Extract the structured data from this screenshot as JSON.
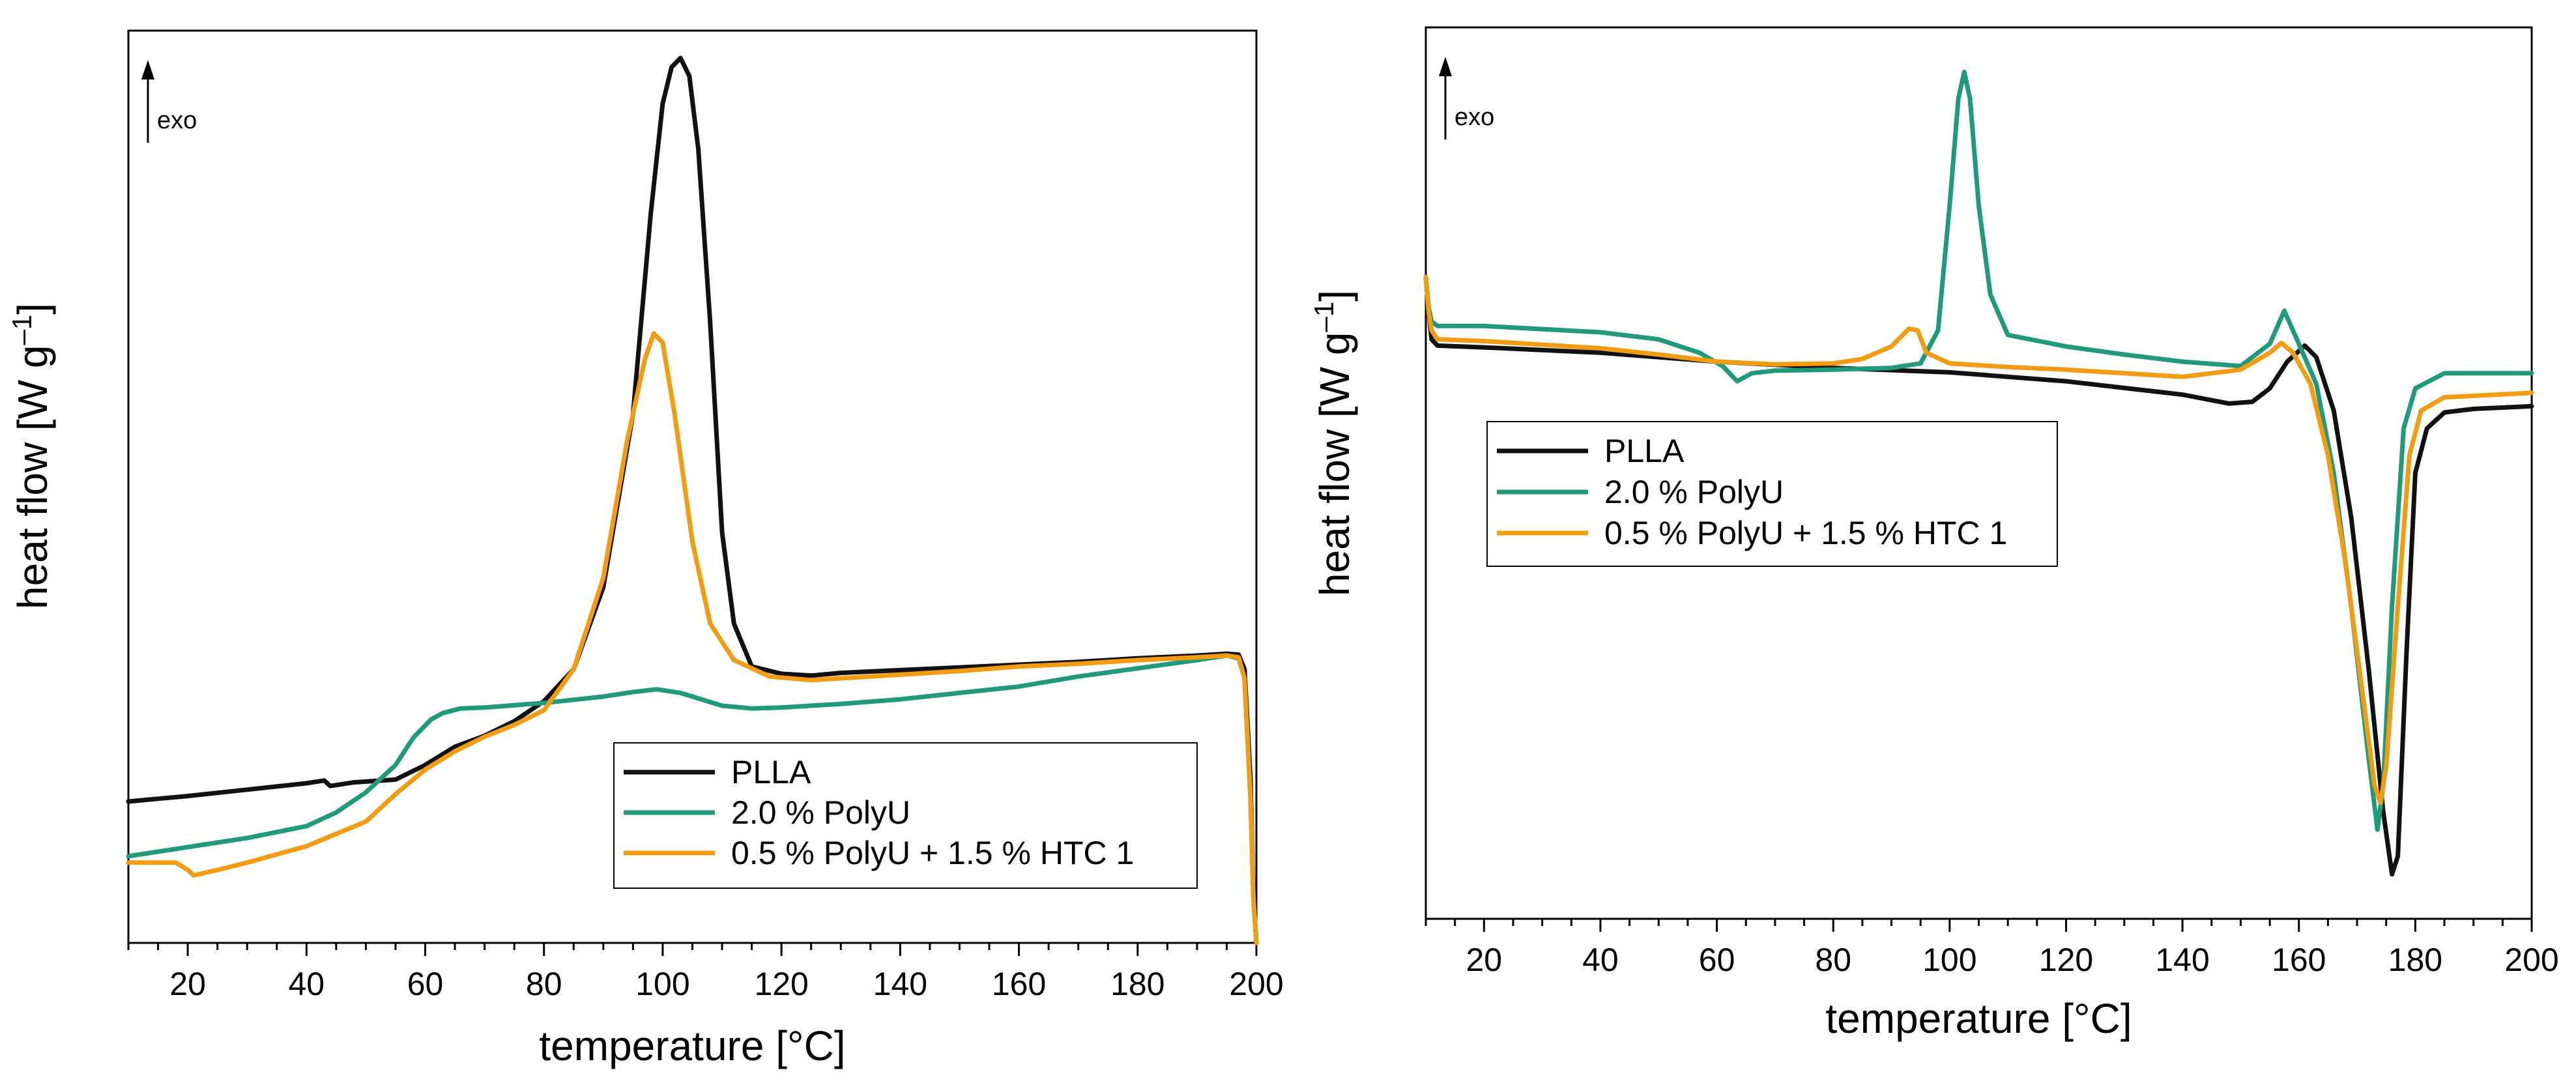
{
  "colors": {
    "PLLA": "#111111",
    "PolyU": "#1f9a7a",
    "HTC": "#f39c12"
  },
  "chart_data": [
    {
      "type": "line",
      "title": "",
      "xlabel": "temperature [°C]",
      "ylabel": "heat flow [W g",
      "ylabel_sup": "–1",
      "ylabel_close": "]",
      "exo_label": "exo",
      "xlim": [
        10,
        200
      ],
      "ylim": [
        0,
        100
      ],
      "xticks": [
        20,
        40,
        60,
        80,
        100,
        120,
        140,
        160,
        180,
        200
      ],
      "grid": false,
      "legend_position": "bottom-center",
      "series": [
        {
          "name": "PLLA",
          "color_key": "PLLA",
          "points": [
            [
              10,
              15.5
            ],
            [
              20,
              16.1
            ],
            [
              30,
              16.8
            ],
            [
              40,
              17.5
            ],
            [
              43,
              17.8
            ],
            [
              44,
              17.2
            ],
            [
              48,
              17.6
            ],
            [
              55,
              17.9
            ],
            [
              60,
              19.5
            ],
            [
              65,
              21.5
            ],
            [
              70,
              22.7
            ],
            [
              75,
              24.3
            ],
            [
              80,
              26.5
            ],
            [
              85,
              30
            ],
            [
              90,
              39
            ],
            [
              95,
              58
            ],
            [
              98,
              80
            ],
            [
              100,
              92
            ],
            [
              101.5,
              96
            ],
            [
              103,
              97
            ],
            [
              104.5,
              95
            ],
            [
              106,
              87
            ],
            [
              108,
              68
            ],
            [
              110,
              45
            ],
            [
              112,
              35
            ],
            [
              115,
              30.3
            ],
            [
              120,
              29.5
            ],
            [
              125,
              29.3
            ],
            [
              130,
              29.6
            ],
            [
              140,
              29.9
            ],
            [
              150,
              30.2
            ],
            [
              160,
              30.5
            ],
            [
              170,
              30.8
            ],
            [
              180,
              31.2
            ],
            [
              190,
              31.5
            ],
            [
              195,
              31.7
            ],
            [
              197,
              31.6
            ],
            [
              198,
              30
            ],
            [
              199,
              18
            ],
            [
              199.5,
              5
            ],
            [
              200,
              0
            ]
          ]
        },
        {
          "name": "2.0 % PolyU",
          "color_key": "PolyU",
          "points": [
            [
              10,
              9.5
            ],
            [
              20,
              10.5
            ],
            [
              30,
              11.5
            ],
            [
              40,
              12.8
            ],
            [
              45,
              14.3
            ],
            [
              50,
              16.5
            ],
            [
              55,
              19.5
            ],
            [
              58,
              22.5
            ],
            [
              61,
              24.5
            ],
            [
              63,
              25.2
            ],
            [
              66,
              25.7
            ],
            [
              70,
              25.8
            ],
            [
              80,
              26.3
            ],
            [
              90,
              27
            ],
            [
              95,
              27.5
            ],
            [
              99,
              27.8
            ],
            [
              103,
              27.4
            ],
            [
              107,
              26.6
            ],
            [
              110,
              26
            ],
            [
              115,
              25.7
            ],
            [
              120,
              25.8
            ],
            [
              130,
              26.2
            ],
            [
              140,
              26.7
            ],
            [
              150,
              27.4
            ],
            [
              160,
              28.1
            ],
            [
              170,
              29.2
            ],
            [
              180,
              30.1
            ],
            [
              190,
              31
            ],
            [
              195,
              31.5
            ],
            [
              197,
              31.2
            ],
            [
              198,
              29
            ],
            [
              199,
              16
            ],
            [
              199.5,
              5
            ],
            [
              200,
              0
            ]
          ]
        },
        {
          "name": "0.5 % PolyU + 1.5 % HTC 1",
          "color_key": "HTC",
          "points": [
            [
              10,
              8.8
            ],
            [
              18,
              8.8
            ],
            [
              20,
              8
            ],
            [
              21,
              7.4
            ],
            [
              25,
              8
            ],
            [
              30,
              8.8
            ],
            [
              40,
              10.6
            ],
            [
              50,
              13.3
            ],
            [
              55,
              16.3
            ],
            [
              60,
              19
            ],
            [
              65,
              21
            ],
            [
              70,
              22.6
            ],
            [
              75,
              23.9
            ],
            [
              80,
              25.5
            ],
            [
              85,
              30
            ],
            [
              90,
              40
            ],
            [
              94,
              55
            ],
            [
              97,
              64
            ],
            [
              98.5,
              66.8
            ],
            [
              100,
              65.8
            ],
            [
              102,
              58
            ],
            [
              105,
              44
            ],
            [
              108,
              35
            ],
            [
              112,
              31
            ],
            [
              118,
              29.2
            ],
            [
              125,
              28.8
            ],
            [
              130,
              29
            ],
            [
              140,
              29.4
            ],
            [
              150,
              29.8
            ],
            [
              160,
              30.3
            ],
            [
              170,
              30.6
            ],
            [
              180,
              31
            ],
            [
              190,
              31.3
            ],
            [
              195,
              31.5
            ],
            [
              197,
              31.3
            ],
            [
              198,
              29
            ],
            [
              199,
              16
            ],
            [
              199.5,
              5
            ],
            [
              200,
              0
            ]
          ]
        }
      ]
    },
    {
      "type": "line",
      "title": "",
      "xlabel": "temperature [°C]",
      "ylabel": "heat flow [W g",
      "ylabel_sup": "–1",
      "ylabel_close": "]",
      "exo_label": "exo",
      "xlim": [
        10,
        200
      ],
      "ylim": [
        0,
        100
      ],
      "xticks": [
        20,
        40,
        60,
        80,
        100,
        120,
        140,
        160,
        180,
        200
      ],
      "grid": false,
      "legend_position": "center-left",
      "series": [
        {
          "name": "PLLA",
          "color_key": "PLLA",
          "points": [
            [
              10,
              72
            ],
            [
              10.5,
              68
            ],
            [
              11,
              65
            ],
            [
              12,
              64.3
            ],
            [
              20,
              64.1
            ],
            [
              40,
              63.5
            ],
            [
              60,
              62.5
            ],
            [
              80,
              61.8
            ],
            [
              100,
              61.3
            ],
            [
              120,
              60.3
            ],
            [
              140,
              58.8
            ],
            [
              148,
              57.8
            ],
            [
              152,
              58
            ],
            [
              155,
              59.5
            ],
            [
              158,
              62.5
            ],
            [
              161,
              64.3
            ],
            [
              163,
              63
            ],
            [
              166,
              57
            ],
            [
              169,
              45
            ],
            [
              172,
              28
            ],
            [
              174.5,
              12
            ],
            [
              176,
              5
            ],
            [
              177,
              7
            ],
            [
              178.5,
              30
            ],
            [
              180,
              50
            ],
            [
              182,
              55
            ],
            [
              185,
              56.8
            ],
            [
              190,
              57.2
            ],
            [
              200,
              57.5
            ]
          ]
        },
        {
          "name": "2.0 % PolyU",
          "color_key": "PolyU",
          "points": [
            [
              10,
              72
            ],
            [
              10.5,
              68.5
            ],
            [
              11,
              67
            ],
            [
              12,
              66.5
            ],
            [
              20,
              66.5
            ],
            [
              40,
              65.8
            ],
            [
              50,
              65
            ],
            [
              57,
              63.5
            ],
            [
              61,
              62
            ],
            [
              63.5,
              60.3
            ],
            [
              66,
              61.2
            ],
            [
              70,
              61.5
            ],
            [
              80,
              61.6
            ],
            [
              90,
              61.8
            ],
            [
              95,
              62.3
            ],
            [
              98,
              66
            ],
            [
              100,
              80
            ],
            [
              101.5,
              92
            ],
            [
              102.5,
              95
            ],
            [
              103.5,
              92
            ],
            [
              105,
              80
            ],
            [
              107,
              70
            ],
            [
              110,
              65.5
            ],
            [
              120,
              64.2
            ],
            [
              130,
              63.3
            ],
            [
              140,
              62.5
            ],
            [
              150,
              62
            ],
            [
              155,
              64.5
            ],
            [
              157.5,
              68.2
            ],
            [
              160,
              64.5
            ],
            [
              163,
              60
            ],
            [
              166,
              50
            ],
            [
              169,
              35
            ],
            [
              172,
              18
            ],
            [
              173.5,
              10
            ],
            [
              174.5,
              15
            ],
            [
              176,
              35
            ],
            [
              178,
              55
            ],
            [
              180,
              59.5
            ],
            [
              185,
              61.2
            ],
            [
              200,
              61.2
            ]
          ]
        },
        {
          "name": "0.5 % PolyU + 1.5 % HTC 1",
          "color_key": "HTC",
          "points": [
            [
              10,
              72
            ],
            [
              10.5,
              68
            ],
            [
              11,
              66
            ],
            [
              12,
              65
            ],
            [
              20,
              64.8
            ],
            [
              40,
              64
            ],
            [
              50,
              63.3
            ],
            [
              60,
              62.5
            ],
            [
              70,
              62.2
            ],
            [
              80,
              62.3
            ],
            [
              85,
              62.8
            ],
            [
              90,
              64.2
            ],
            [
              93,
              66.2
            ],
            [
              94.5,
              66
            ],
            [
              96,
              63.5
            ],
            [
              100,
              62.3
            ],
            [
              110,
              61.9
            ],
            [
              120,
              61.6
            ],
            [
              130,
              61.2
            ],
            [
              140,
              60.8
            ],
            [
              150,
              61.6
            ],
            [
              155,
              63.5
            ],
            [
              157,
              64.6
            ],
            [
              159,
              63.5
            ],
            [
              162,
              60
            ],
            [
              165,
              52
            ],
            [
              168,
              40
            ],
            [
              171,
              25
            ],
            [
              173,
              15
            ],
            [
              174,
              13
            ],
            [
              175,
              17
            ],
            [
              177,
              35
            ],
            [
              179,
              52
            ],
            [
              181,
              57
            ],
            [
              185,
              58.5
            ],
            [
              200,
              59
            ]
          ]
        }
      ]
    }
  ]
}
